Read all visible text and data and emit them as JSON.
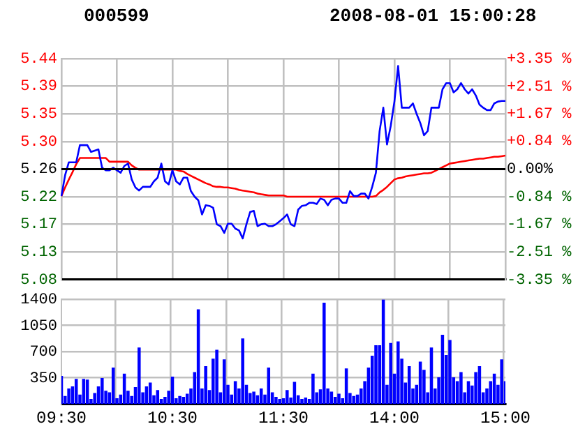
{
  "chart_data": [
    {
      "type": "line",
      "title": "000599",
      "subtitle": "2008-08-01 15:00:28",
      "categories": [
        null,
        null,
        null,
        null,
        null,
        null,
        null,
        null,
        null,
        null,
        null,
        null,
        null,
        null,
        null,
        null,
        null,
        null,
        null,
        null,
        null,
        null,
        null,
        null,
        null,
        null,
        null,
        null,
        null,
        null,
        null,
        null,
        null,
        null,
        null,
        null,
        null,
        null,
        null,
        null,
        null,
        null,
        null,
        null,
        null,
        null,
        null,
        null,
        null,
        null,
        null,
        null,
        null,
        null,
        null,
        null,
        null,
        null,
        null,
        null,
        null,
        null,
        null,
        null,
        null,
        null,
        null,
        null,
        null,
        null,
        null,
        null,
        null,
        null,
        null,
        null,
        null,
        null,
        null,
        null,
        null,
        null,
        null,
        null,
        null,
        null,
        null,
        null,
        null,
        null,
        null,
        null,
        null,
        null,
        null,
        null,
        null,
        null,
        null,
        null,
        null,
        null,
        null,
        null,
        null,
        null,
        null,
        null,
        null,
        null,
        null,
        null,
        null,
        null,
        null,
        null,
        null,
        null,
        null,
        null,
        null
      ],
      "ylim": [
        5.08,
        5.44
      ],
      "yticks": [
        {
          "value": 5.08,
          "label": "5.08"
        },
        {
          "value": 5.125,
          "label": "5.13"
        },
        {
          "value": 5.17,
          "label": "5.17"
        },
        {
          "value": 5.215,
          "label": "5.22"
        },
        {
          "value": 5.26,
          "label": "5.26"
        },
        {
          "value": 5.305,
          "label": "5.30"
        },
        {
          "value": 5.35,
          "label": "5.35"
        },
        {
          "value": 5.395,
          "label": "5.39"
        },
        {
          "value": 5.44,
          "label": "5.44"
        }
      ],
      "y2lim": [
        -3.35,
        3.35
      ],
      "y2ticks": [
        {
          "value": -3.35,
          "label": "-3.35 %"
        },
        {
          "value": -2.51,
          "label": "-2.51 %"
        },
        {
          "value": -1.67,
          "label": "-1.67 %"
        },
        {
          "value": -0.84,
          "label": "-0.84 %"
        },
        {
          "value": 0,
          "label": "0.00%"
        },
        {
          "value": 0.84,
          "label": "+0.84 %"
        },
        {
          "value": 1.67,
          "label": "+1.67 %"
        },
        {
          "value": 2.51,
          "label": "+2.51 %"
        },
        {
          "value": 3.35,
          "label": "+3.35 %"
        }
      ],
      "grid": true,
      "legend": false,
      "tick_labels": "y",
      "marker": "none",
      "line_style": "solid",
      "ref_lines": [
        {
          "axis": "y",
          "value": 5.26,
          "color": "#000000"
        }
      ],
      "series": [
        {
          "color": "#0000ff",
          "values": [
            5.216,
            5.25,
            5.271,
            5.271,
            5.271,
            5.299,
            5.299,
            5.299,
            5.288,
            5.29,
            5.292,
            5.262,
            5.258,
            5.258,
            5.262,
            5.258,
            5.254,
            5.265,
            5.269,
            5.243,
            5.23,
            5.225,
            5.231,
            5.231,
            5.231,
            5.24,
            5.246,
            5.269,
            5.24,
            5.235,
            5.258,
            5.24,
            5.235,
            5.246,
            5.246,
            5.224,
            5.215,
            5.209,
            5.186,
            5.201,
            5.2,
            5.197,
            5.17,
            5.167,
            5.156,
            5.171,
            5.171,
            5.163,
            5.16,
            5.147,
            5.17,
            5.19,
            5.192,
            5.167,
            5.17,
            5.171,
            5.167,
            5.167,
            5.17,
            5.175,
            5.18,
            5.186,
            5.17,
            5.167,
            5.194,
            5.2,
            5.201,
            5.205,
            5.205,
            5.203,
            5.212,
            5.21,
            5.201,
            5.21,
            5.212,
            5.212,
            5.205,
            5.205,
            5.224,
            5.216,
            5.216,
            5.22,
            5.22,
            5.212,
            5.231,
            5.254,
            5.322,
            5.36,
            5.3,
            5.33,
            5.37,
            5.428,
            5.36,
            5.36,
            5.36,
            5.367,
            5.35,
            5.335,
            5.315,
            5.322,
            5.36,
            5.36,
            5.36,
            5.39,
            5.4,
            5.4,
            5.385,
            5.39,
            5.4,
            5.39,
            5.383,
            5.39,
            5.38,
            5.365,
            5.36,
            5.356,
            5.356,
            5.367,
            5.37,
            5.371,
            5.371
          ]
        },
        {
          "color": "#ff0000",
          "values": [
            5.216,
            5.23,
            5.243,
            5.255,
            5.268,
            5.278,
            5.278,
            5.278,
            5.278,
            5.278,
            5.278,
            5.278,
            5.278,
            5.272,
            5.272,
            5.272,
            5.272,
            5.272,
            5.272,
            5.266,
            5.262,
            5.259,
            5.259,
            5.259,
            5.259,
            5.259,
            5.259,
            5.259,
            5.259,
            5.259,
            5.259,
            5.259,
            5.257,
            5.256,
            5.252,
            5.249,
            5.246,
            5.243,
            5.24,
            5.237,
            5.235,
            5.232,
            5.231,
            5.231,
            5.23,
            5.23,
            5.229,
            5.228,
            5.226,
            5.225,
            5.224,
            5.223,
            5.222,
            5.22,
            5.219,
            5.218,
            5.217,
            5.217,
            5.217,
            5.217,
            5.217,
            5.215,
            5.215,
            5.215,
            5.215,
            5.215,
            5.215,
            5.215,
            5.215,
            5.215,
            5.215,
            5.215,
            5.215,
            5.215,
            5.215,
            5.215,
            5.215,
            5.215,
            5.215,
            5.215,
            5.215,
            5.215,
            5.215,
            5.215,
            5.215,
            5.216,
            5.222,
            5.226,
            5.231,
            5.237,
            5.243,
            5.245,
            5.246,
            5.248,
            5.249,
            5.25,
            5.251,
            5.252,
            5.253,
            5.253,
            5.254,
            5.257,
            5.26,
            5.263,
            5.266,
            5.269,
            5.27,
            5.271,
            5.272,
            5.273,
            5.274,
            5.275,
            5.276,
            5.277,
            5.277,
            5.278,
            5.279,
            5.28,
            5.28,
            5.281,
            5.282
          ]
        }
      ]
    },
    {
      "type": "bar",
      "categories": [
        "09:30",
        null,
        null,
        null,
        null,
        null,
        null,
        null,
        null,
        null,
        null,
        null,
        null,
        null,
        null,
        null,
        null,
        null,
        null,
        null,
        null,
        null,
        null,
        null,
        null,
        null,
        null,
        null,
        null,
        null,
        "10:30",
        null,
        null,
        null,
        null,
        null,
        null,
        null,
        null,
        null,
        null,
        null,
        null,
        null,
        null,
        null,
        null,
        null,
        null,
        null,
        null,
        null,
        null,
        null,
        null,
        null,
        null,
        null,
        null,
        null,
        "11:30",
        null,
        null,
        null,
        null,
        null,
        null,
        null,
        null,
        null,
        null,
        null,
        null,
        null,
        null,
        null,
        null,
        null,
        null,
        null,
        null,
        null,
        null,
        null,
        null,
        null,
        null,
        null,
        null,
        null,
        "14:00",
        null,
        null,
        null,
        null,
        null,
        null,
        null,
        null,
        null,
        null,
        null,
        null,
        null,
        null,
        null,
        null,
        null,
        null,
        null,
        null,
        null,
        null,
        null,
        null,
        null,
        null,
        null,
        null,
        null,
        "15:00"
      ],
      "ylim": [
        0,
        1400
      ],
      "yticks": [
        350,
        700,
        1050,
        1400
      ],
      "grid": true,
      "legend": false,
      "series": [
        {
          "color": "#0000ff",
          "values": [
            370,
            100,
            200,
            230,
            330,
            120,
            330,
            320,
            60,
            140,
            230,
            340,
            170,
            150,
            480,
            70,
            120,
            400,
            170,
            100,
            220,
            750,
            150,
            230,
            280,
            110,
            180,
            60,
            90,
            170,
            360,
            70,
            100,
            90,
            130,
            200,
            420,
            1260,
            200,
            500,
            180,
            600,
            720,
            150,
            590,
            250,
            120,
            300,
            200,
            870,
            250,
            140,
            160,
            110,
            200,
            120,
            480,
            150,
            90,
            60,
            70,
            180,
            80,
            290,
            110,
            60,
            80,
            60,
            400,
            150,
            190,
            1350,
            200,
            160,
            90,
            130,
            70,
            470,
            140,
            100,
            120,
            200,
            300,
            480,
            640,
            780,
            780,
            1390,
            250,
            810,
            400,
            830,
            600,
            280,
            500,
            200,
            250,
            560,
            450,
            150,
            750,
            200,
            350,
            920,
            650,
            850,
            350,
            300,
            420,
            150,
            300,
            240,
            420,
            500,
            150,
            200,
            300,
            400,
            250,
            590,
            300
          ]
        }
      ]
    }
  ]
}
